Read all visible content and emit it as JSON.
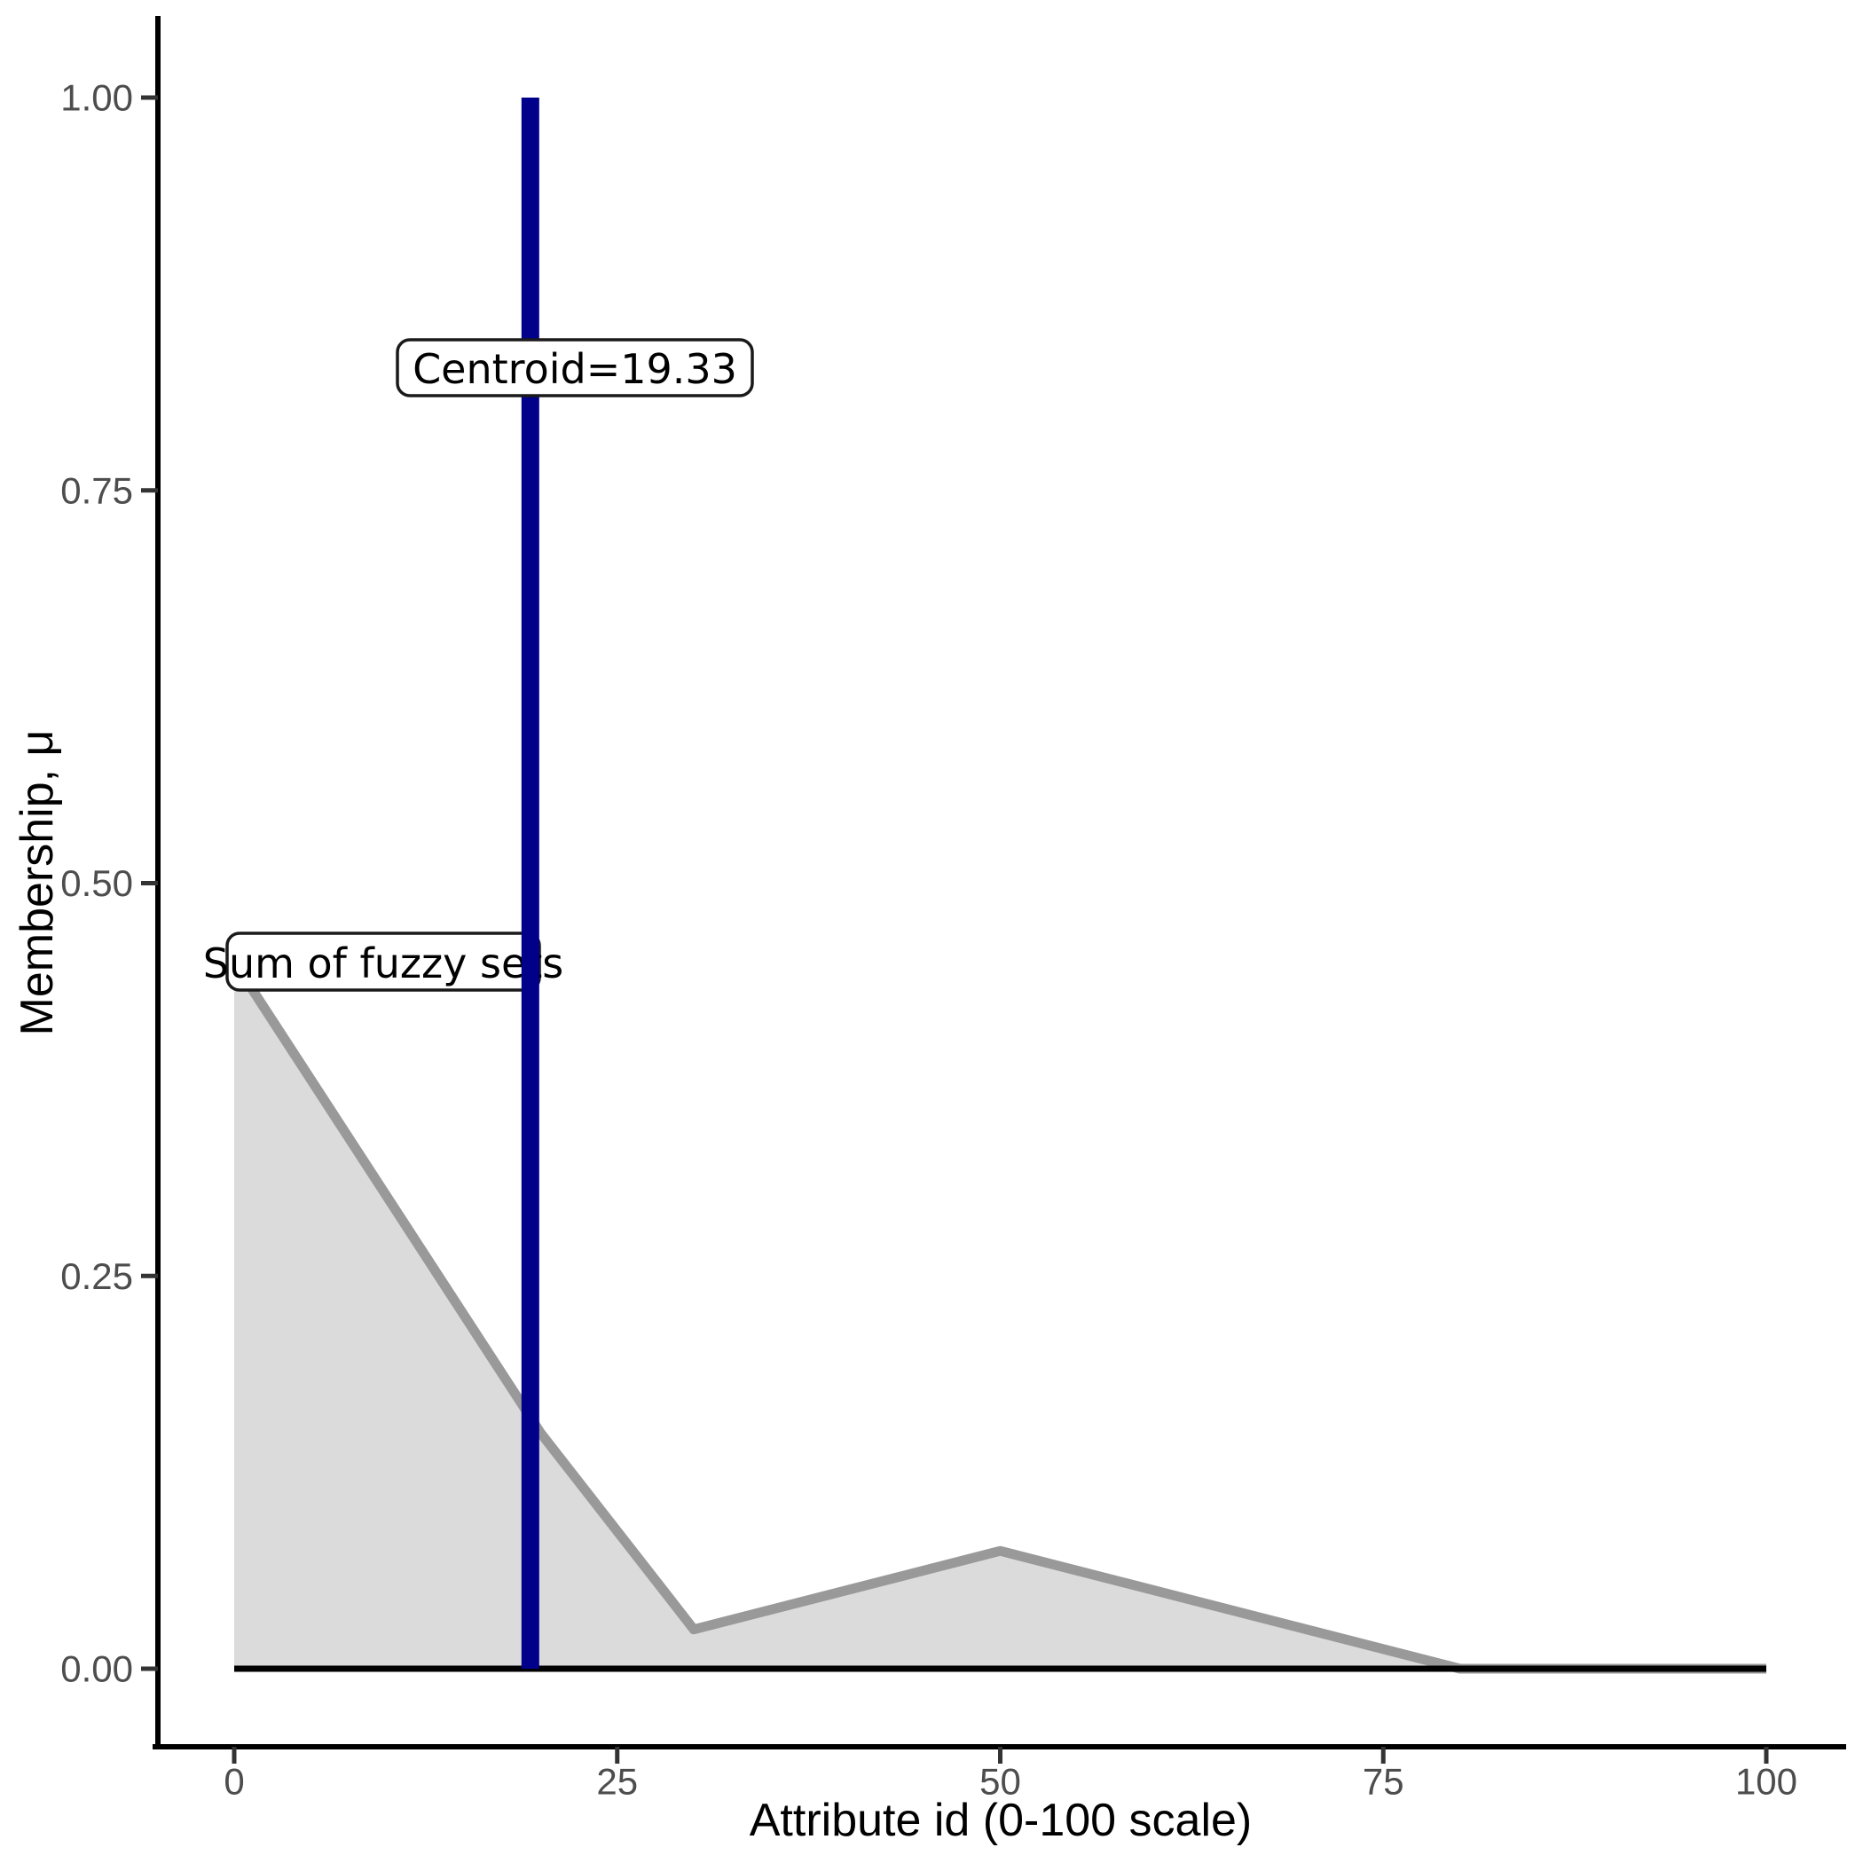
{
  "chart_data": {
    "type": "area",
    "xlabel": "Attribute id (0-100 scale)",
    "ylabel": "Membership, μ",
    "xlim": [
      -5,
      105
    ],
    "ylim": [
      -0.05,
      1.05
    ],
    "grid": "off",
    "legend": "none",
    "x_ticks": [
      {
        "v": 0,
        "label": "0"
      },
      {
        "v": 25,
        "label": "25"
      },
      {
        "v": 50,
        "label": "50"
      },
      {
        "v": 75,
        "label": "75"
      },
      {
        "v": 100,
        "label": "100"
      }
    ],
    "y_ticks": [
      {
        "v": 0.0,
        "label": "0.00"
      },
      {
        "v": 0.25,
        "label": "0.25"
      },
      {
        "v": 0.5,
        "label": "0.50"
      },
      {
        "v": 0.75,
        "label": "0.75"
      },
      {
        "v": 1.0,
        "label": "1.00"
      }
    ],
    "series": [
      {
        "name": "Sum of fuzzy sets",
        "points": [
          [
            0,
            0.45
          ],
          [
            20,
            0.15
          ],
          [
            30,
            0.025
          ],
          [
            50,
            0.075
          ],
          [
            80,
            0
          ],
          [
            100,
            0
          ]
        ],
        "line_color": "#999999",
        "fill_color": "#DBDBDB"
      }
    ],
    "baseline": {
      "y": 0,
      "color": "#000000"
    },
    "centroid": {
      "value": 19.33,
      "ymin": 0,
      "ymax": 1.0,
      "color": "#00008B",
      "label": "Centroid=19.33"
    },
    "sum_label": "Sum of fuzzy sets",
    "axis_text_color": "#4D4D4D"
  }
}
